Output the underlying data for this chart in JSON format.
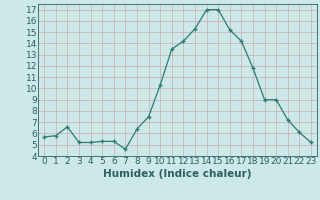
{
  "x": [
    0,
    1,
    2,
    3,
    4,
    5,
    6,
    7,
    8,
    9,
    10,
    11,
    12,
    13,
    14,
    15,
    16,
    17,
    18,
    19,
    20,
    21,
    22,
    23
  ],
  "y": [
    5.7,
    5.8,
    6.6,
    5.2,
    5.2,
    5.3,
    5.3,
    4.6,
    6.4,
    7.5,
    10.3,
    13.5,
    14.2,
    15.3,
    17.0,
    17.0,
    15.2,
    14.2,
    11.8,
    9.0,
    9.0,
    7.2,
    6.1,
    5.2
  ],
  "line_color": "#2e7d6e",
  "marker": "+",
  "bg_color": "#cce8e8",
  "grid_major_color": "#b8d4d4",
  "grid_minor_color": "#d6e8e8",
  "xlabel": "Humidex (Indice chaleur)",
  "ylim": [
    4,
    17.5
  ],
  "xlim": [
    -0.5,
    23.5
  ],
  "yticks": [
    4,
    5,
    6,
    7,
    8,
    9,
    10,
    11,
    12,
    13,
    14,
    15,
    16,
    17
  ],
  "xticks": [
    0,
    1,
    2,
    3,
    4,
    5,
    6,
    7,
    8,
    9,
    10,
    11,
    12,
    13,
    14,
    15,
    16,
    17,
    18,
    19,
    20,
    21,
    22,
    23
  ],
  "tick_color": "#2e6060",
  "font_size": 6.5,
  "label_font_size": 7.5,
  "marker_size": 3,
  "line_width": 0.9
}
